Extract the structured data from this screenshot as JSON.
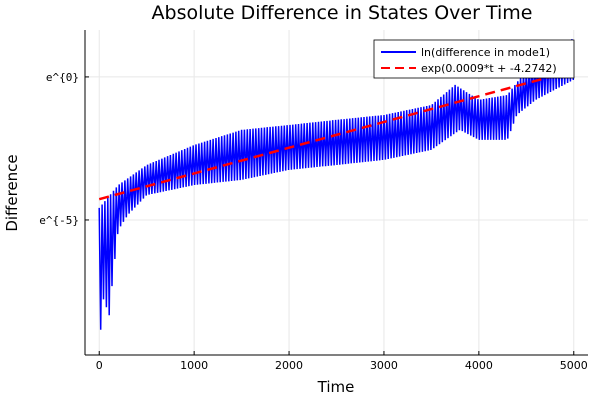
{
  "chart_data": {
    "type": "line",
    "title": "Absolute Difference in States Over Time",
    "xlabel": "Time",
    "ylabel": "Difference",
    "xlim": [
      -150,
      5150
    ],
    "ylim_ln": [
      -9.72,
      1.64
    ],
    "x_ticks": [
      0,
      1000,
      2000,
      3000,
      4000,
      5000
    ],
    "y_ticks": [
      {
        "ln": 0,
        "label": "e^{0}"
      },
      {
        "ln": -5,
        "label": "e^{-5}"
      }
    ],
    "grid": true,
    "legend_position": "top-right",
    "series": [
      {
        "name": "ln(difference in mode1)",
        "color": "#0000ff",
        "style": "solid",
        "oscillation_period": 30,
        "upper_envelope": {
          "t": [
            0,
            200,
            500,
            1000,
            1500,
            2000,
            2500,
            3000,
            3500,
            3750,
            4000,
            4300,
            4500,
            4800,
            5000
          ],
          "ln": [
            -4.58,
            -3.78,
            -3.08,
            -2.38,
            -1.85,
            -1.68,
            -1.5,
            -1.33,
            -0.98,
            -0.28,
            -0.8,
            -0.63,
            0.24,
            0.94,
            1.36
          ]
        },
        "lower_envelope": {
          "t": [
            0,
            50,
            100,
            150,
            200,
            300,
            500,
            1000,
            1500,
            2000,
            2500,
            3000,
            3500,
            3800,
            4000,
            4300,
            4400,
            4600,
            5000
          ],
          "ln": [
            -9.37,
            -7.6,
            -8.5,
            -6.8,
            -5.35,
            -4.83,
            -4.13,
            -3.78,
            -3.6,
            -3.25,
            -3.08,
            -2.9,
            -2.55,
            -1.85,
            -2.2,
            -2.2,
            -1.33,
            -0.8,
            -0.1
          ]
        }
      },
      {
        "name": "exp(0.0009*t + -4.2742)",
        "color": "#ff0000",
        "style": "dashed",
        "slope": 0.0009,
        "intercept": -4.2742
      }
    ]
  }
}
